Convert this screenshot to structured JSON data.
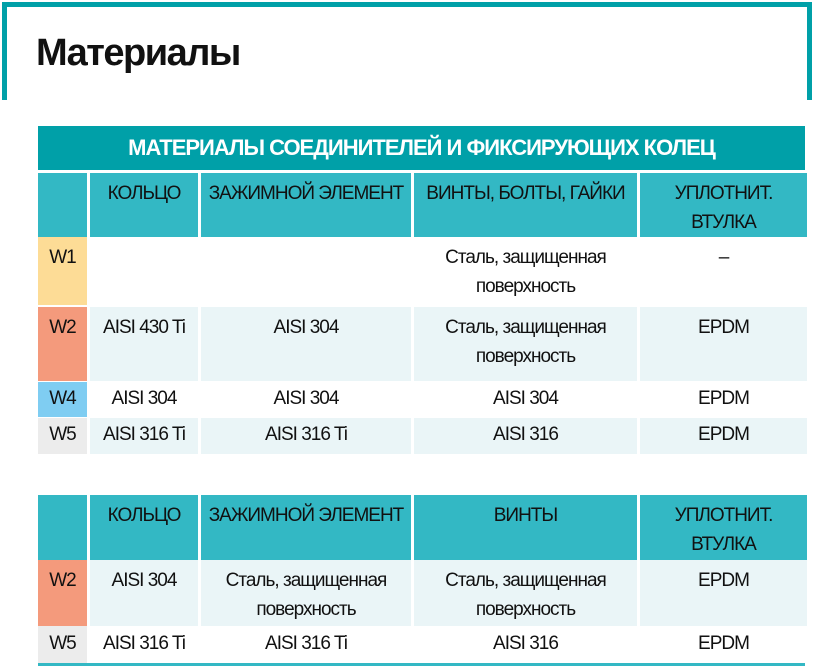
{
  "title": "Материалы",
  "table1": {
    "banner": "МАТЕРИАЛЫ СОЕДИНИТЕЛЕЙ И ФИКСИРУЮЩИХ КОЛЕЦ",
    "headers": [
      "",
      "КОЛЬЦО",
      "ЗАЖИМНОЙ ЭЛЕМЕНТ",
      "ВИНТЫ, БОЛТЫ, ГАЙКИ",
      "УПЛОТНИТ. ВТУЛКА"
    ],
    "rows": [
      [
        "W1",
        "",
        "",
        "Сталь, защищенная поверхность",
        "–"
      ],
      [
        "W2",
        "AISI 430 Ti",
        "AISI 304",
        "Сталь, защищенная поверхность",
        "EPDM"
      ],
      [
        "W4",
        "AISI 304",
        "AISI 304",
        "AISI 304",
        "EPDM"
      ],
      [
        "W5",
        "AISI 316 Ti",
        "AISI 316 Ti",
        "AISI 316",
        "EPDM"
      ]
    ]
  },
  "table2": {
    "headers": [
      "",
      "КОЛЬЦО",
      "ЗАЖИМНОЙ ЭЛЕМЕНТ",
      "ВИНТЫ",
      "УПЛОТНИТ. ВТУЛКА"
    ],
    "rows": [
      [
        "W2",
        "AISI 304",
        "Сталь, защищенная поверхность",
        "Сталь, защищенная поверхность",
        "EPDM"
      ],
      [
        "W5",
        "AISI 316 Ti",
        "AISI 316 Ti",
        "AISI 316",
        "EPDM"
      ]
    ]
  },
  "colors": {
    "teal": "#00a0a8",
    "header": "#33b8c4",
    "W1": "#fddc96",
    "W2": "#f49a7c",
    "W4": "#7fcdf2",
    "W5": "#ececec"
  }
}
